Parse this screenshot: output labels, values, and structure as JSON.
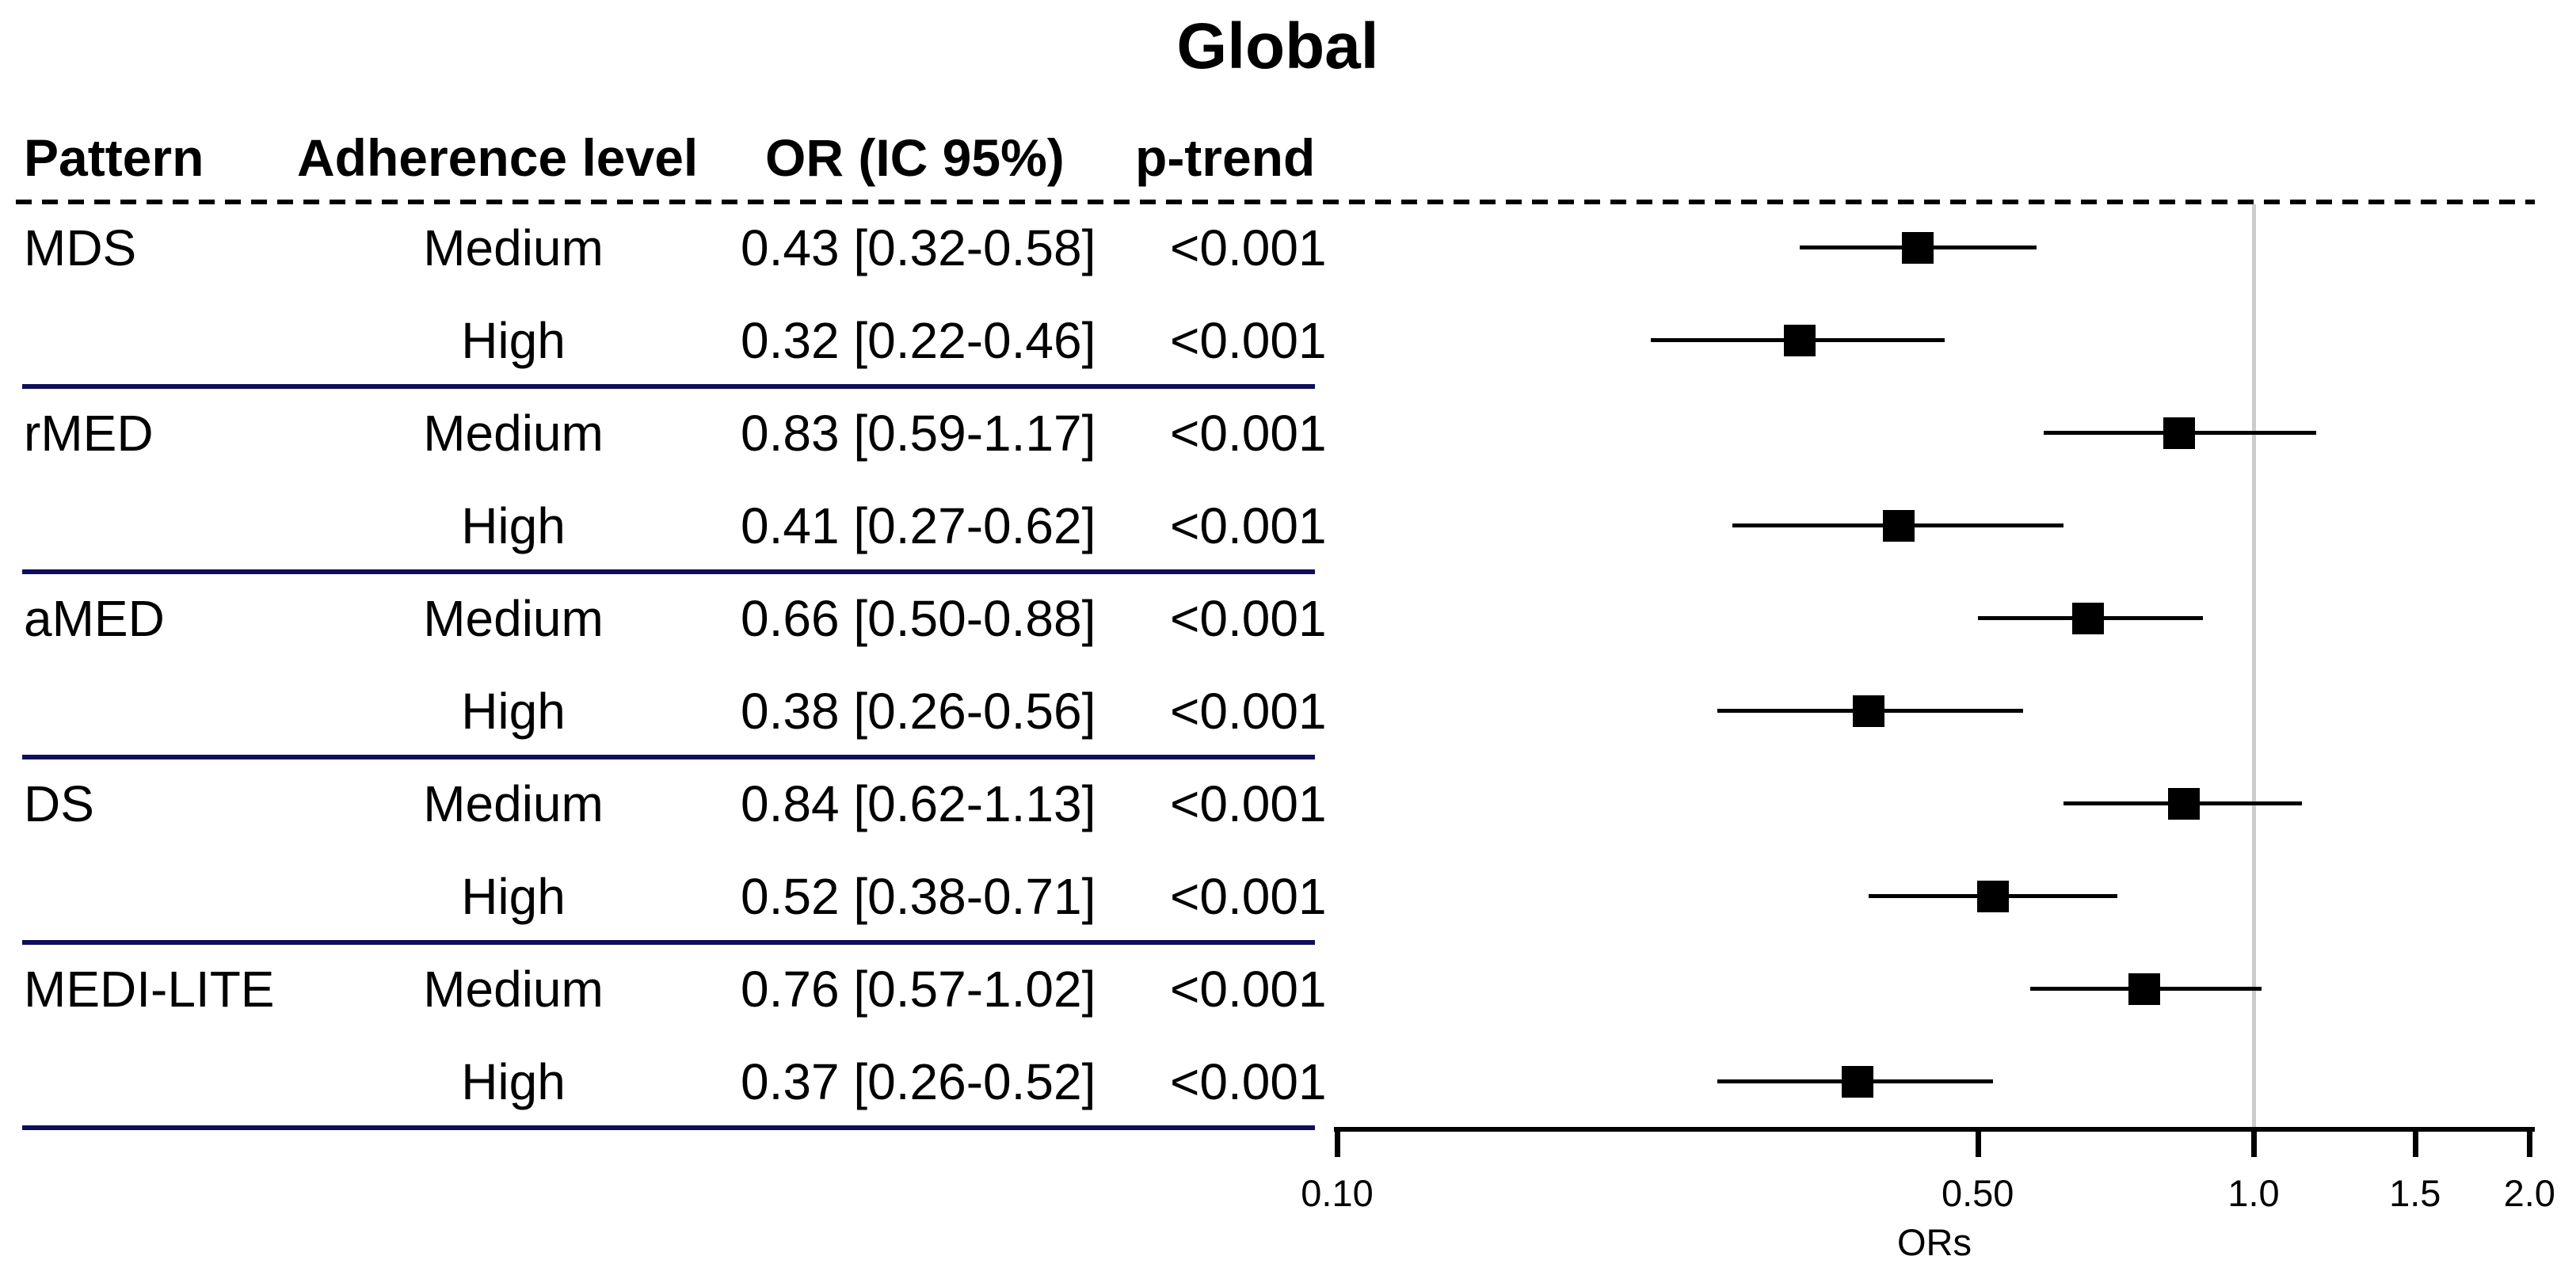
{
  "title": "Global",
  "table": {
    "headers": {
      "pattern": "Pattern",
      "adherence": "Adherence level",
      "or_ci": "OR (IC 95%)",
      "p_trend": "p-trend"
    }
  },
  "chart_data": {
    "type": "forest",
    "title": "Global",
    "xlabel": "ORs",
    "x_scale": "log",
    "xlim": [
      0.1,
      2.0
    ],
    "x_ticks": [
      0.1,
      0.5,
      1.0,
      1.5,
      2.0
    ],
    "x_tick_labels": [
      "0.10",
      "0.50",
      "1.0",
      "1.5",
      "2.0"
    ],
    "reference_line": 1.0,
    "grid": false,
    "rows": [
      {
        "pattern": "MDS",
        "level": "Medium",
        "or": 0.43,
        "ci_low": 0.32,
        "ci_high": 0.58,
        "or_ci_label": "0.43 [0.32-0.58]",
        "p_trend": "<0.001"
      },
      {
        "pattern": "",
        "level": "High",
        "or": 0.32,
        "ci_low": 0.22,
        "ci_high": 0.46,
        "or_ci_label": "0.32 [0.22-0.46]",
        "p_trend": "<0.001"
      },
      {
        "pattern": "rMED",
        "level": "Medium",
        "or": 0.83,
        "ci_low": 0.59,
        "ci_high": 1.17,
        "or_ci_label": "0.83 [0.59-1.17]",
        "p_trend": "<0.001"
      },
      {
        "pattern": "",
        "level": "High",
        "or": 0.41,
        "ci_low": 0.27,
        "ci_high": 0.62,
        "or_ci_label": "0.41 [0.27-0.62]",
        "p_trend": "<0.001"
      },
      {
        "pattern": "aMED",
        "level": "Medium",
        "or": 0.66,
        "ci_low": 0.5,
        "ci_high": 0.88,
        "or_ci_label": "0.66 [0.50-0.88]",
        "p_trend": "<0.001"
      },
      {
        "pattern": "",
        "level": "High",
        "or": 0.38,
        "ci_low": 0.26,
        "ci_high": 0.56,
        "or_ci_label": "0.38 [0.26-0.56]",
        "p_trend": "<0.001"
      },
      {
        "pattern": "DS",
        "level": "Medium",
        "or": 0.84,
        "ci_low": 0.62,
        "ci_high": 1.13,
        "or_ci_label": "0.84 [0.62-1.13]",
        "p_trend": "<0.001"
      },
      {
        "pattern": "",
        "level": "High",
        "or": 0.52,
        "ci_low": 0.38,
        "ci_high": 0.71,
        "or_ci_label": "0.52 [0.38-0.71]",
        "p_trend": "<0.001"
      },
      {
        "pattern": "MEDI-LITE",
        "level": "Medium",
        "or": 0.76,
        "ci_low": 0.57,
        "ci_high": 1.02,
        "or_ci_label": "0.76 [0.57-1.02]",
        "p_trend": "<0.001"
      },
      {
        "pattern": "",
        "level": "High",
        "or": 0.37,
        "ci_low": 0.26,
        "ci_high": 0.52,
        "or_ci_label": "0.37 [0.26-0.52]",
        "p_trend": "<0.001"
      }
    ],
    "colors": {
      "marker": "#000000",
      "ci_line": "#000000",
      "separator": "#0e0e5c",
      "reference_line": "#cccccc",
      "dashed_rule": "#000000",
      "text": "#000000"
    }
  }
}
